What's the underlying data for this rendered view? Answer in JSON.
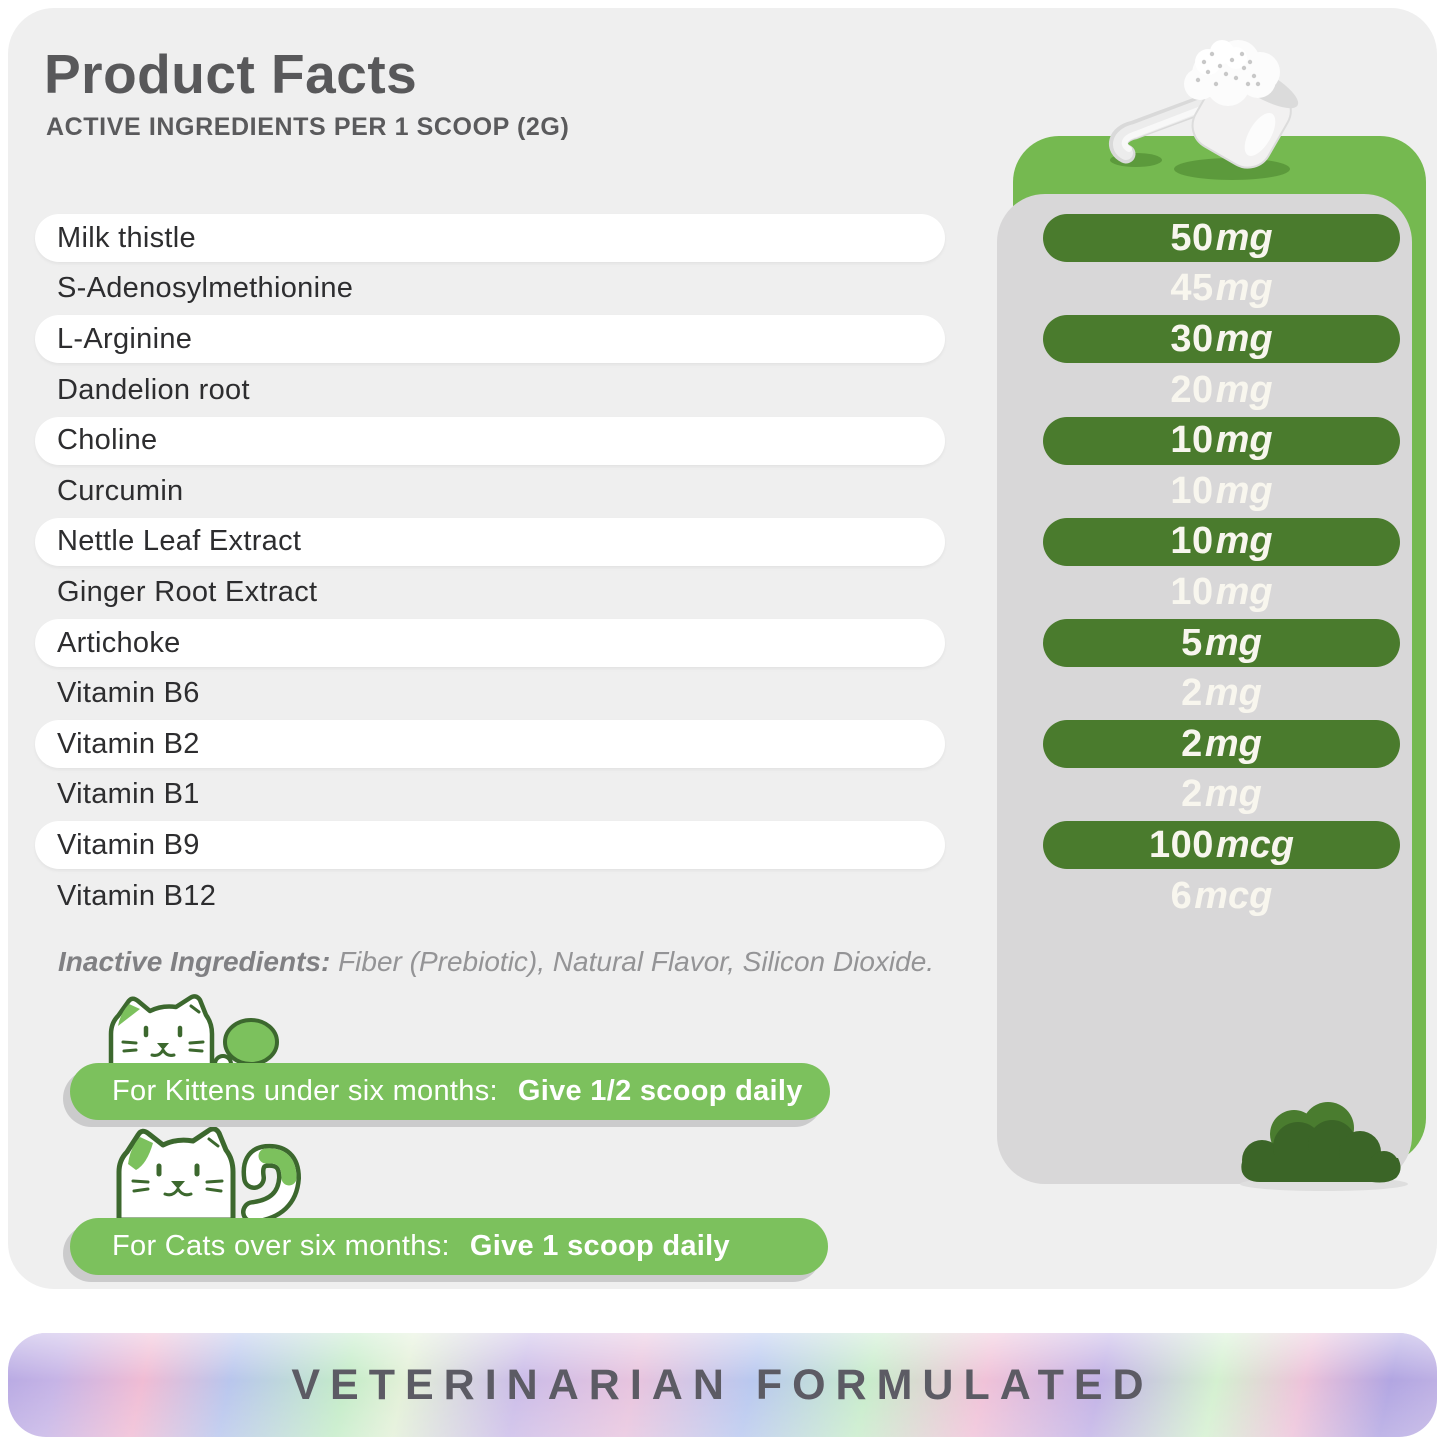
{
  "title": "Product Facts",
  "subtitle": "ACTIVE INGREDIENTS PER 1 SCOOP (2G)",
  "rows": [
    {
      "name": "Milk thistle",
      "amount_value": "50",
      "amount_unit": "mg",
      "highlight": true
    },
    {
      "name": "S-Adenosylmethionine",
      "amount_value": "45",
      "amount_unit": "mg",
      "highlight": false
    },
    {
      "name": "L-Arginine",
      "amount_value": "30",
      "amount_unit": "mg",
      "highlight": true
    },
    {
      "name": "Dandelion root",
      "amount_value": "20",
      "amount_unit": "mg",
      "highlight": false
    },
    {
      "name": "Choline",
      "amount_value": "10",
      "amount_unit": "mg",
      "highlight": true
    },
    {
      "name": "Curcumin",
      "amount_value": "10",
      "amount_unit": "mg",
      "highlight": false
    },
    {
      "name": "Nettle Leaf Extract",
      "amount_value": "10",
      "amount_unit": "mg",
      "highlight": true
    },
    {
      "name": "Ginger Root Extract",
      "amount_value": "10",
      "amount_unit": "mg",
      "highlight": false
    },
    {
      "name": "Artichoke",
      "amount_value": "5",
      "amount_unit": "mg",
      "highlight": true
    },
    {
      "name": "Vitamin B6",
      "amount_value": "2",
      "amount_unit": "mg",
      "highlight": false
    },
    {
      "name": "Vitamin B2",
      "amount_value": "2",
      "amount_unit": "mg",
      "highlight": true
    },
    {
      "name": "Vitamin B1",
      "amount_value": "2",
      "amount_unit": "mg",
      "highlight": false
    },
    {
      "name": "Vitamin B9",
      "amount_value": "100",
      "amount_unit": "mcg",
      "highlight": true
    },
    {
      "name": "Vitamin B12",
      "amount_value": "6",
      "amount_unit": "mcg",
      "highlight": false
    }
  ],
  "inactive": {
    "label": "Inactive Ingredients:",
    "text": " Fiber (Prebiotic), Natural Flavor, Silicon Dioxide."
  },
  "dosage": [
    {
      "label": "For Kittens under six months:",
      "bold": "Give 1/2 scoop daily"
    },
    {
      "label": "For Cats over six months:",
      "bold": "Give 1 scoop daily"
    }
  ],
  "banner": {
    "text": "VETERINARIAN FORMULATED"
  },
  "icons": {
    "scoop": "powder-scoop-icon",
    "kitten": "kitten-icon",
    "cat": "cat-icon",
    "bush": "bush-icon"
  },
  "colors": {
    "card_bg": "#efefef",
    "panel_green": "#75b950",
    "pill_dark_green": "#4a7b2d",
    "dosage_pill_green": "#7cc15d",
    "amount_text": "#f8f6ee",
    "title_text": "#58585a",
    "ingredient_text": "#2d2d2f",
    "inactive_text": "#949496",
    "banner_text": "#5c5b64"
  }
}
